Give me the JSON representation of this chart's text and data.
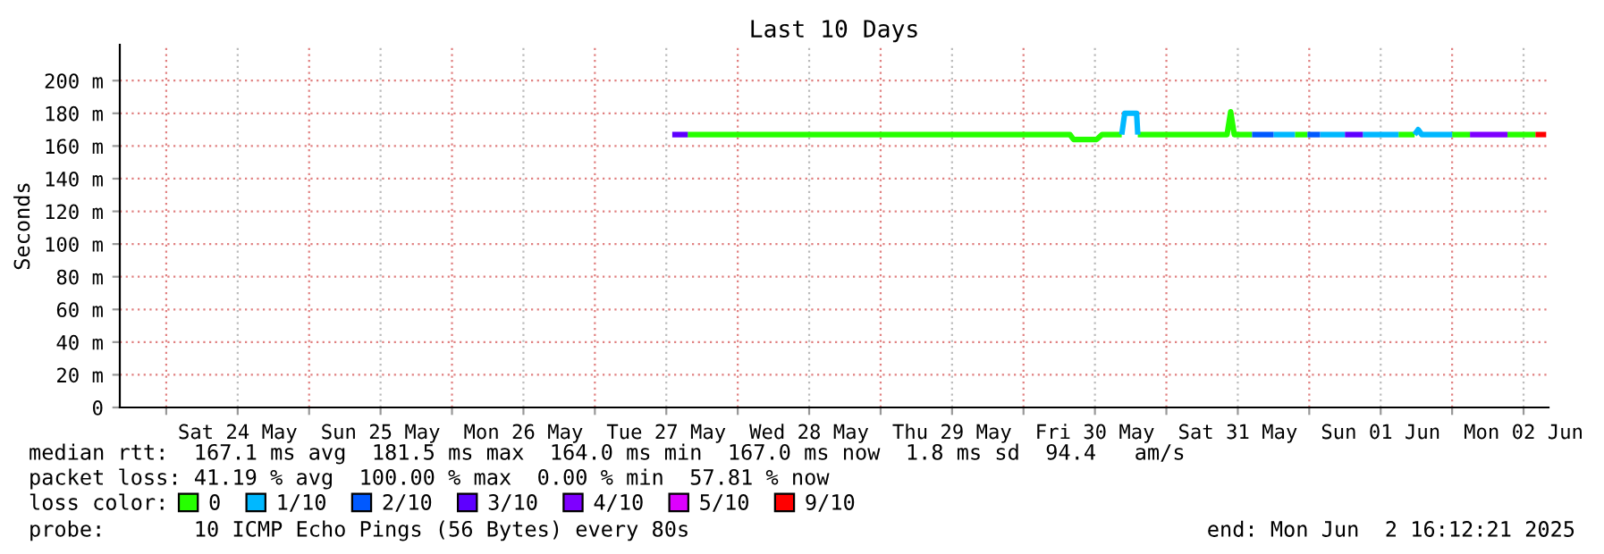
{
  "chart_data": {
    "type": "line",
    "title": "Last 10 Days",
    "ylabel": "Seconds",
    "legend_title": "loss color:",
    "xlim": [
      "2025-05-23T16:12",
      "2025-06-02T16:12"
    ],
    "xticks": [
      {
        "value": "2025-05-24T00:00",
        "label": null
      },
      {
        "value": "2025-05-24T12:00",
        "label": "Sat 24 May"
      },
      {
        "value": "2025-05-25T00:00",
        "label": null
      },
      {
        "value": "2025-05-25T12:00",
        "label": "Sun 25 May"
      },
      {
        "value": "2025-05-26T00:00",
        "label": null
      },
      {
        "value": "2025-05-26T12:00",
        "label": "Mon 26 May"
      },
      {
        "value": "2025-05-27T00:00",
        "label": null
      },
      {
        "value": "2025-05-27T12:00",
        "label": "Tue 27 May"
      },
      {
        "value": "2025-05-28T00:00",
        "label": null
      },
      {
        "value": "2025-05-28T12:00",
        "label": "Wed 28 May"
      },
      {
        "value": "2025-05-29T00:00",
        "label": null
      },
      {
        "value": "2025-05-29T12:00",
        "label": "Thu 29 May"
      },
      {
        "value": "2025-05-30T00:00",
        "label": null
      },
      {
        "value": "2025-05-30T12:00",
        "label": "Fri 30 May"
      },
      {
        "value": "2025-05-31T00:00",
        "label": null
      },
      {
        "value": "2025-05-31T12:00",
        "label": "Sat 31 May"
      },
      {
        "value": "2025-06-01T00:00",
        "label": null
      },
      {
        "value": "2025-06-01T12:00",
        "label": "Sun 01 Jun"
      },
      {
        "value": "2025-06-02T00:00",
        "label": null
      },
      {
        "value": "2025-06-02T12:00",
        "label": "Mon 02 Jun"
      }
    ],
    "ylim": [
      0,
      222
    ],
    "yticks": [
      0,
      {
        "value": 20,
        "label": "20 m"
      },
      {
        "value": 40,
        "label": "40 m"
      },
      {
        "value": 60,
        "label": "60 m"
      },
      {
        "value": 80,
        "label": "80 m"
      },
      {
        "value": 100,
        "label": "100 m"
      },
      {
        "value": 120,
        "label": "120 m"
      },
      {
        "value": 140,
        "label": "140 m"
      },
      {
        "value": 160,
        "label": "160 m"
      },
      {
        "value": 180,
        "label": "180 m"
      },
      {
        "value": 200,
        "label": "200 m"
      }
    ],
    "grid": true,
    "legend": "bottom",
    "line_style": "solid",
    "marker": "none",
    "series": [
      {
        "name": "0",
        "color": "#26ff00",
        "x": [
          "2025-05-27T15:36",
          "2025-05-30T07:48",
          "2025-05-30T08:24",
          "2025-05-30T12:18",
          "2025-05-30T13:12",
          "2025-05-30T16:30",
          "2025-05-30T17:30",
          "2025-05-30T18:30",
          "2025-05-30T19:12",
          "2025-05-31T10:12",
          "2025-05-31T10:48",
          "2025-05-31T11:24",
          "2025-05-31T14:24",
          "2025-05-31T18:00",
          "2025-05-31T21:36",
          "2025-05-31T23:42",
          "2025-06-01T09:00",
          "2025-06-01T15:00",
          "2025-06-01T17:42",
          "2025-06-01T21:00",
          "2025-06-02T00:00",
          "2025-06-02T03:00",
          "2025-06-02T06:00",
          "2025-06-02T09:18",
          "2025-06-02T14:00"
        ],
        "values": [
          167,
          167,
          164,
          164,
          167,
          167,
          null,
          null,
          167,
          167,
          181,
          167,
          167,
          null,
          167,
          167,
          null,
          167,
          167,
          null,
          167,
          167,
          null,
          167,
          167
        ]
      },
      {
        "name": "1/10",
        "color": "#00b8ff",
        "x": [
          "2025-05-30T16:30",
          "2025-05-30T17:00",
          "2025-05-30T19:00",
          "2025-05-30T19:12",
          "2025-05-30T20:00",
          "2025-05-31T18:00",
          "2025-05-31T21:36",
          "2025-05-31T23:00",
          "2025-06-01T01:48",
          "2025-06-01T06:00",
          "2025-06-01T07:00",
          "2025-06-01T09:00",
          "2025-06-01T15:00",
          "2025-06-01T16:00",
          "2025-06-01T17:42",
          "2025-06-01T18:18",
          "2025-06-01T18:54",
          "2025-06-02T00:00"
        ],
        "values": [
          167,
          180,
          180,
          167,
          null,
          167,
          167,
          null,
          167,
          167,
          null,
          167,
          167,
          null,
          167,
          170,
          167,
          167
        ]
      },
      {
        "name": "2/10",
        "color": "#0059ff",
        "x": [
          "2025-05-31T14:24",
          "2025-05-31T18:00",
          "2025-05-31T20:00",
          "2025-05-31T23:42",
          "2025-06-01T01:48"
        ],
        "values": [
          167,
          167,
          null,
          167,
          167
        ]
      },
      {
        "name": "3/10",
        "color": "#5e00ff",
        "x": [
          "2025-05-27T13:00",
          "2025-05-27T15:36",
          "2025-05-28T00:00",
          "2025-06-01T06:00",
          "2025-06-01T09:00"
        ],
        "values": [
          167,
          167,
          null,
          167,
          167
        ]
      },
      {
        "name": "4/10",
        "color": "#7e00ff",
        "x": [
          "2025-06-02T03:00",
          "2025-06-02T09:18"
        ],
        "values": [
          167,
          167
        ]
      },
      {
        "name": "5/10",
        "color": "#dd00ff"
      },
      {
        "name": "9/10",
        "color": "#ff0000",
        "x": [
          "2025-06-02T14:00",
          "2025-06-02T15:48"
        ],
        "values": [
          167,
          167
        ]
      }
    ],
    "annotations": [
      "median rtt:  167.1 ms avg  181.5 ms max  164.0 ms min  167.0 ms now  1.8 ms sd  94.4   am/s",
      "packet loss: 41.19 % avg  100.00 % max  0.00 % min  57.81 % now",
      "probe:       10 ICMP Echo Pings (56 Bytes) every 80s",
      "end: Mon Jun  2 16:12:21 2025"
    ]
  }
}
